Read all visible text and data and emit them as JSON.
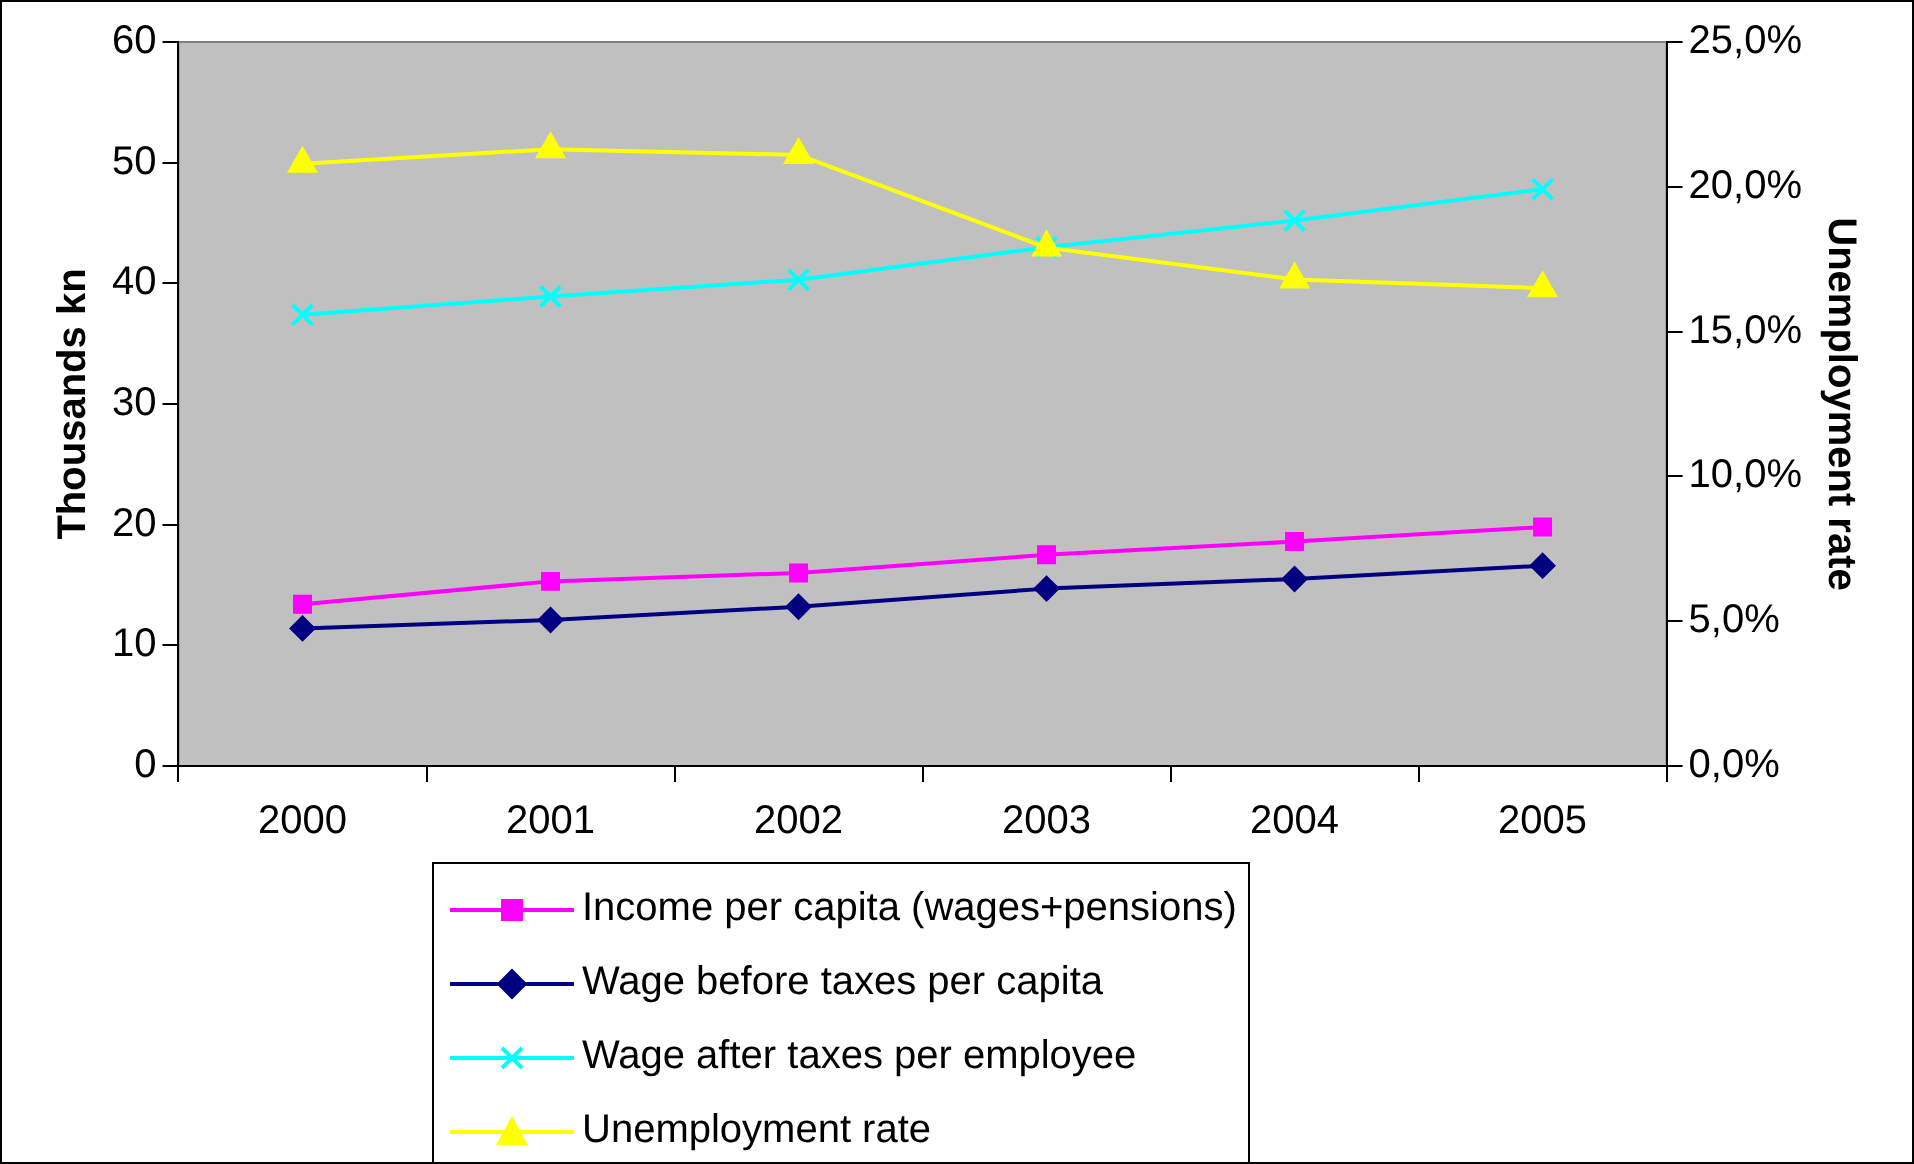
{
  "chart_data": {
    "type": "line",
    "xlabel": null,
    "ylabel": "Thousands kn",
    "y2label": "Unemployment rate",
    "categories": [
      "2000",
      "2001",
      "2002",
      "2003",
      "2004",
      "2005"
    ],
    "series": [
      {
        "name": "Income per capita (wages+pensions)",
        "color": "#ff00ff",
        "marker": "square",
        "values": [
          13.4,
          15.3,
          16.0,
          17.5,
          18.6,
          19.8
        ]
      },
      {
        "name": "Wage before taxes per capita",
        "color": "#000080",
        "marker": "diamond",
        "values": [
          11.4,
          12.1,
          13.2,
          14.7,
          15.5,
          16.6
        ]
      },
      {
        "name": "Wage after taxes per employee",
        "color": "#00ffff",
        "marker": "cross",
        "values": [
          37.4,
          38.9,
          40.3,
          43.0,
          45.2,
          47.8
        ]
      },
      {
        "name": "Unemployment rate",
        "color": "#ffff00",
        "marker": "triangle",
        "axis": "y2",
        "values": [
          20.8,
          21.3,
          21.1,
          17.9,
          16.8,
          16.5
        ]
      }
    ],
    "ylim": [
      0,
      60
    ],
    "yticks": [
      0,
      10,
      20,
      30,
      40,
      50,
      60
    ],
    "y2lim": [
      0,
      25
    ],
    "y2ticks": [
      {
        "value": 0,
        "label": "0,0%"
      },
      {
        "value": 5,
        "label": "5,0%"
      },
      {
        "value": 10,
        "label": "10,0%"
      },
      {
        "value": 15,
        "label": "15,0%"
      },
      {
        "value": 20,
        "label": "20,0%"
      },
      {
        "value": 25,
        "label": "25,0%"
      }
    ],
    "grid": false,
    "legend": "bottom",
    "line_style": "solid"
  }
}
